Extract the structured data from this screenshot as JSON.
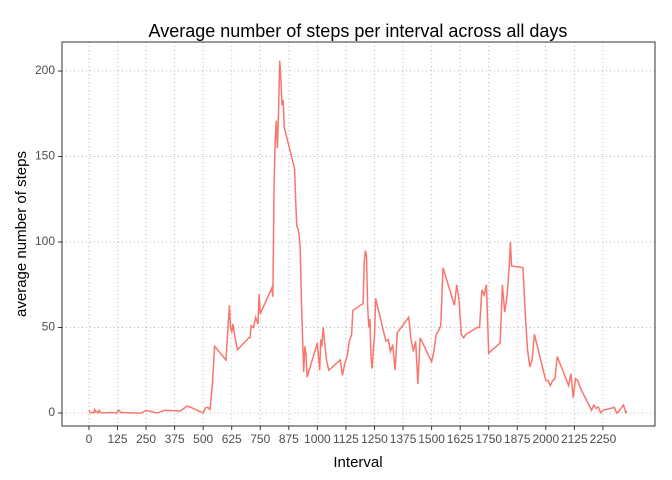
{
  "chart_data": {
    "type": "line",
    "title": "Average number of steps per interval across all days",
    "x_label": "Interval",
    "y_label": "average number of steps",
    "color": "#F8766D",
    "grid": true,
    "xlim": [
      -118,
      2478
    ],
    "ylim": [
      -7.6,
      217
    ],
    "xticks": [
      0,
      125,
      250,
      375,
      500,
      625,
      750,
      875,
      1000,
      1125,
      1250,
      1375,
      1500,
      1625,
      1750,
      1875,
      2000,
      2125,
      2250
    ],
    "yticks": [
      0,
      50,
      100,
      150,
      200
    ],
    "x": [
      0,
      5,
      10,
      15,
      20,
      25,
      30,
      35,
      40,
      45,
      50,
      55,
      100,
      110,
      120,
      130,
      140,
      150,
      200,
      230,
      250,
      300,
      330,
      400,
      430,
      440,
      450,
      500,
      510,
      520,
      530,
      540,
      550,
      600,
      610,
      615,
      620,
      625,
      630,
      640,
      650,
      700,
      705,
      710,
      720,
      730,
      740,
      745,
      750,
      800,
      805,
      810,
      815,
      820,
      825,
      830,
      835,
      840,
      845,
      850,
      855,
      900,
      905,
      910,
      915,
      920,
      925,
      930,
      935,
      940,
      945,
      950,
      955,
      1000,
      1010,
      1015,
      1020,
      1025,
      1030,
      1040,
      1050,
      1100,
      1110,
      1120,
      1130,
      1140,
      1150,
      1155,
      1200,
      1205,
      1210,
      1215,
      1220,
      1225,
      1230,
      1235,
      1240,
      1245,
      1250,
      1255,
      1300,
      1310,
      1320,
      1330,
      1340,
      1350,
      1400,
      1410,
      1420,
      1430,
      1440,
      1450,
      1500,
      1510,
      1520,
      1530,
      1540,
      1550,
      1600,
      1610,
      1620,
      1630,
      1640,
      1650,
      1700,
      1710,
      1720,
      1730,
      1740,
      1750,
      1800,
      1810,
      1820,
      1830,
      1840,
      1845,
      1850,
      1900,
      1910,
      1920,
      1930,
      1940,
      1950,
      2000,
      2010,
      2020,
      2030,
      2040,
      2050,
      2100,
      2110,
      2120,
      2130,
      2140,
      2150,
      2200,
      2210,
      2220,
      2230,
      2240,
      2250,
      2300,
      2310,
      2320,
      2330,
      2340,
      2350,
      2355
    ],
    "values": [
      1.7,
      0.3,
      0.1,
      0.2,
      0.1,
      2.1,
      0.5,
      0.9,
      0,
      1.5,
      0.3,
      0.1,
      0.3,
      0.2,
      0,
      1.8,
      0.2,
      0.3,
      0,
      0,
      1.5,
      0,
      1.6,
      1.2,
      4.1,
      3.5,
      3.1,
      0,
      3,
      3.3,
      2.1,
      16,
      39,
      31,
      53,
      63,
      50,
      47,
      52,
      44,
      37,
      44,
      44,
      51,
      50,
      56,
      52,
      69.5,
      58,
      73,
      68,
      129,
      158,
      171,
      155,
      177,
      206,
      196,
      180,
      183,
      167,
      143,
      124,
      109,
      108,
      104,
      96,
      66,
      45,
      24,
      39,
      35,
      21,
      41,
      25,
      43,
      39,
      50,
      44,
      31,
      25,
      31,
      22,
      29,
      33,
      42,
      46,
      60,
      64,
      88,
      95,
      92,
      63,
      50,
      55,
      32,
      26,
      37,
      45,
      67,
      42,
      43,
      36,
      40,
      25,
      47,
      56,
      43,
      36,
      42,
      17,
      44,
      30,
      36,
      46,
      48,
      51,
      85,
      63,
      75,
      66,
      46,
      44,
      46,
      50,
      50,
      72,
      69,
      75,
      35,
      41,
      75,
      59,
      68,
      86,
      100,
      86,
      85,
      58,
      37,
      27,
      31,
      46,
      19,
      19,
      16,
      19,
      20,
      33,
      16,
      23,
      9,
      20,
      19,
      15,
      1.6,
      4.6,
      2.7,
      3.5,
      0.1,
      1.6,
      3.3,
      0,
      1,
      3,
      4.7,
      0.2,
      1.1
    ]
  }
}
